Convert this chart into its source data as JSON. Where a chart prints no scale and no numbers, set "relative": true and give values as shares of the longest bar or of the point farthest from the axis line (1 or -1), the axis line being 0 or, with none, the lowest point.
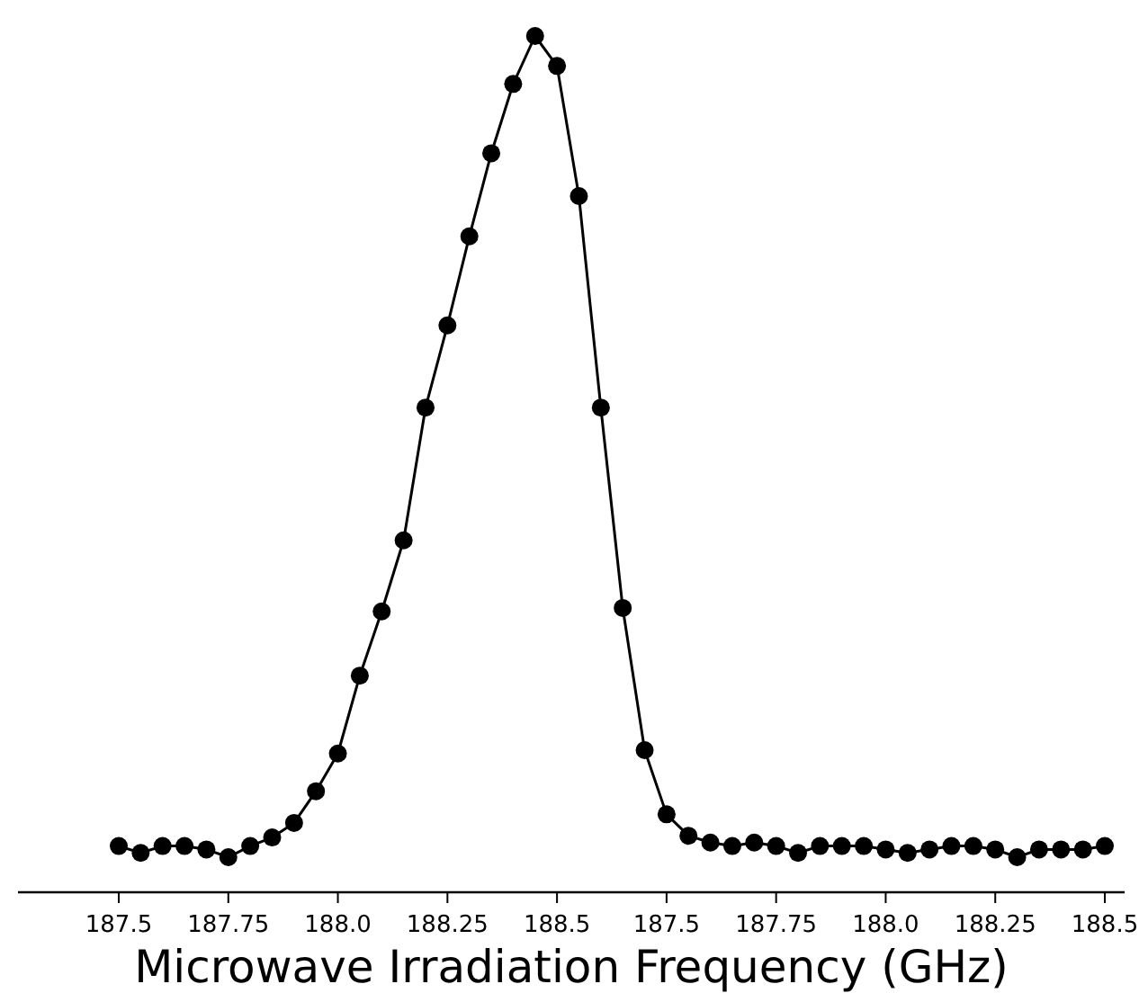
{
  "chart_data": {
    "type": "line",
    "xlabel": "Microwave Irradiation Frequency (GHz)",
    "relative": true,
    "marker": "circle",
    "line_style": "solid",
    "grid": false,
    "legend": false,
    "categories": [
      "187.5",
      null,
      null,
      null,
      null,
      "187.75",
      null,
      null,
      null,
      null,
      "188.0",
      null,
      null,
      null,
      null,
      "188.25",
      null,
      null,
      null,
      null,
      "188.5",
      null,
      null,
      null,
      null,
      "187.5",
      null,
      null,
      null,
      null,
      "187.75",
      null,
      null,
      null,
      null,
      "188.0",
      null,
      null,
      null,
      null,
      "188.25",
      null,
      null,
      null,
      null,
      "188.5"
    ],
    "series": [
      {
        "color": "#000000",
        "values": [
          0.054,
          0.046,
          0.054,
          0.054,
          0.05,
          0.041,
          0.054,
          0.064,
          0.081,
          0.118,
          0.162,
          0.253,
          0.328,
          0.411,
          0.566,
          0.662,
          0.766,
          0.863,
          0.944,
          1,
          0.965,
          0.813,
          0.566,
          0.332,
          0.166,
          0.091,
          0.066,
          0.058,
          0.054,
          0.058,
          0.054,
          0.046,
          0.054,
          0.054,
          0.054,
          0.05,
          0.046,
          0.05,
          0.054,
          0.054,
          0.05,
          0.041,
          0.05,
          0.05,
          0.05,
          0.054
        ]
      }
    ]
  }
}
